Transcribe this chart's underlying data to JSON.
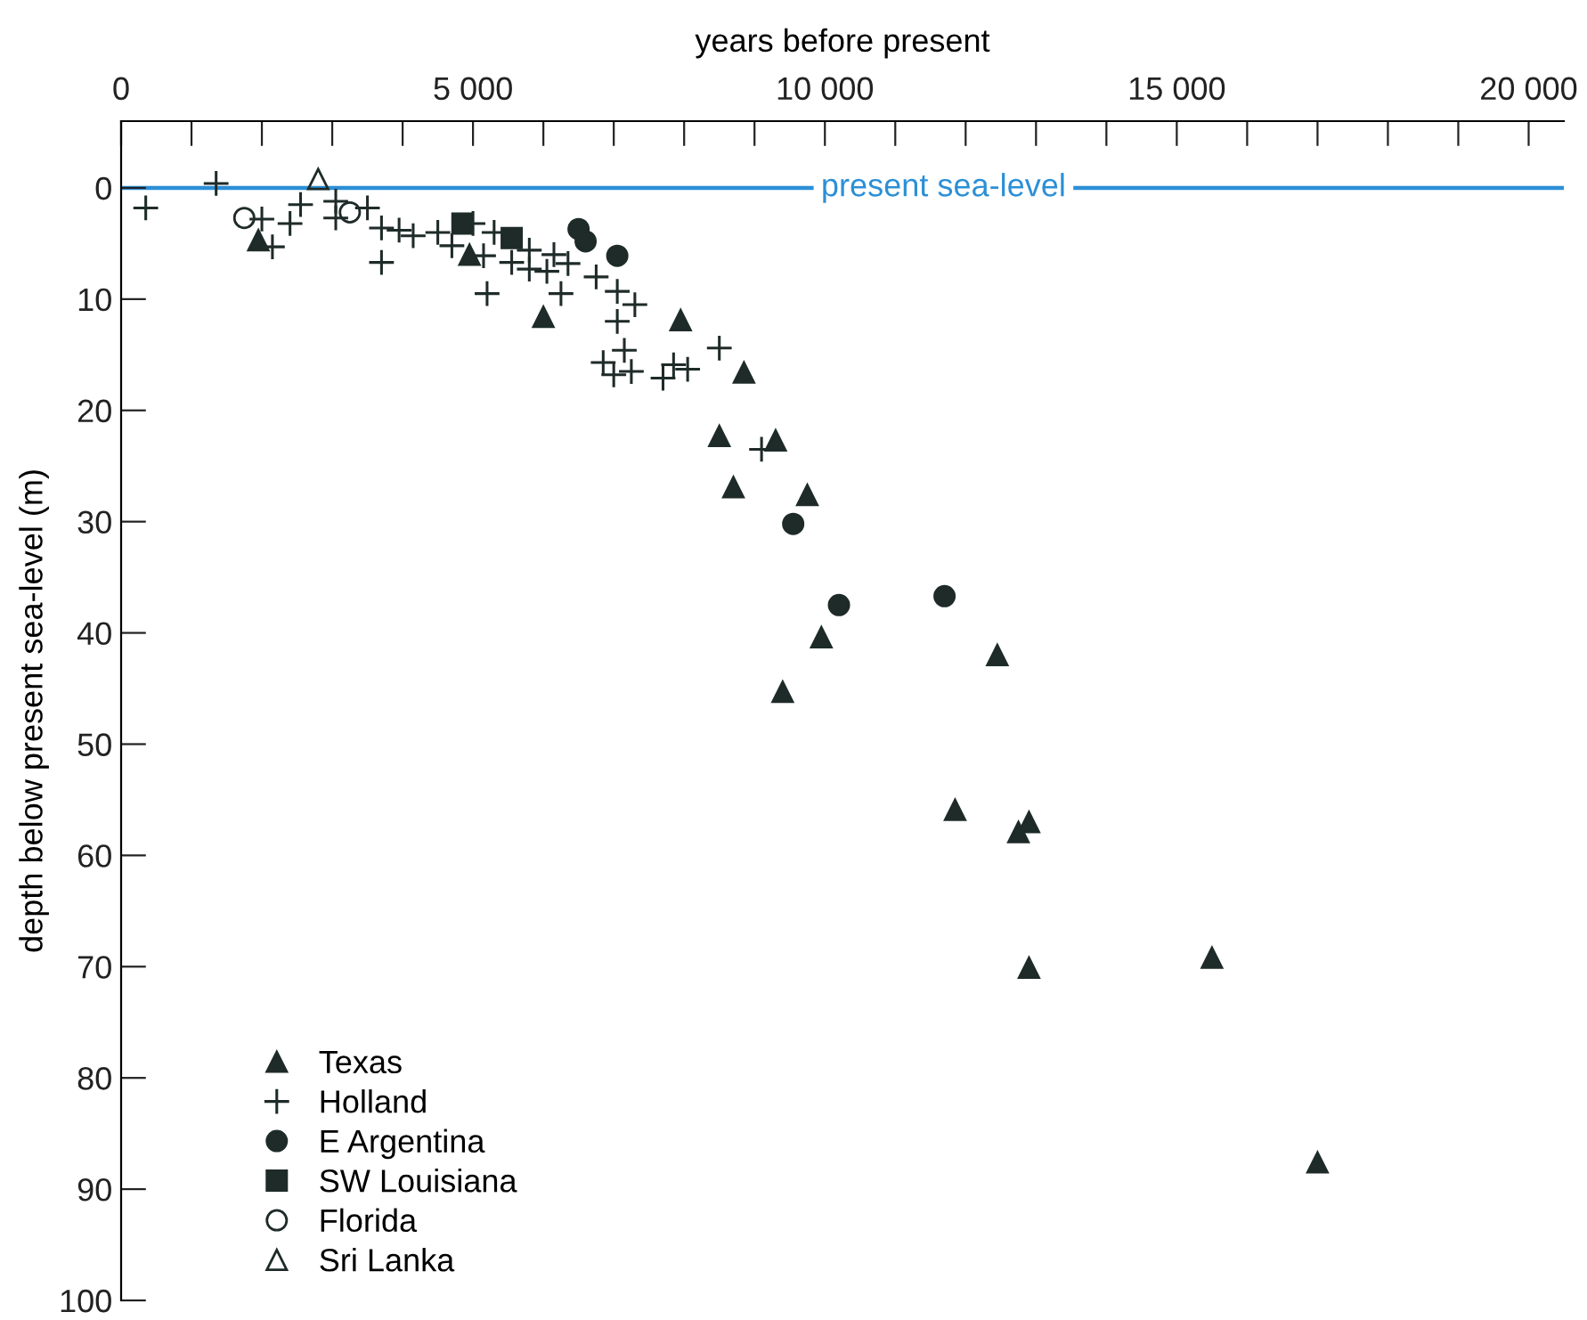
{
  "chart_data": {
    "type": "scatter",
    "xlabel": "years before present",
    "ylabel": "depth below present sea-level (m)",
    "xlim": [
      0,
      20500
    ],
    "ylim": [
      100,
      -6
    ],
    "xticks": [
      0,
      {
        "value": 1000,
        "label": null
      },
      {
        "value": 2000,
        "label": null
      },
      {
        "value": 3000,
        "label": null
      },
      {
        "value": 4000,
        "label": null
      },
      {
        "value": 5000,
        "label": "5 000"
      },
      {
        "value": 6000,
        "label": null
      },
      {
        "value": 7000,
        "label": null
      },
      {
        "value": 8000,
        "label": null
      },
      {
        "value": 9000,
        "label": null
      },
      {
        "value": 10000,
        "label": "10 000"
      },
      {
        "value": 11000,
        "label": null
      },
      {
        "value": 12000,
        "label": null
      },
      {
        "value": 13000,
        "label": null
      },
      {
        "value": 14000,
        "label": null
      },
      {
        "value": 15000,
        "label": "15 000"
      },
      {
        "value": 16000,
        "label": null
      },
      {
        "value": 17000,
        "label": null
      },
      {
        "value": 18000,
        "label": null
      },
      {
        "value": 19000,
        "label": null
      },
      {
        "value": 20000,
        "label": "20 000"
      }
    ],
    "yticks": [
      0,
      10,
      20,
      30,
      40,
      50,
      60,
      70,
      80,
      90,
      100
    ],
    "grid": false,
    "legend": "bottom left",
    "ref_lines": [
      {
        "axis": "y",
        "value": 0,
        "label": "present sea-level",
        "color": "#2b8fd6",
        "line_style": "solid"
      }
    ],
    "series": [
      {
        "name": "Texas",
        "marker": "triangle",
        "color": "#1e2b29",
        "x": [
          1950,
          4950,
          6000,
          7950,
          8850,
          8500,
          9300,
          8700,
          9750,
          9950,
          12450,
          9400,
          11850,
          12900,
          12750,
          12900,
          15500,
          17000
        ],
        "values": [
          4.7,
          6.0,
          11.6,
          11.9,
          16.6,
          22.3,
          22.7,
          26.9,
          27.6,
          40.4,
          42.0,
          45.3,
          55.9,
          57.0,
          57.9,
          70.1,
          69.2,
          87.6
        ]
      },
      {
        "name": "Holland",
        "marker": "cross",
        "color": "#1e2b29",
        "x": [
          350,
          1350,
          2000,
          2400,
          2550,
          2150,
          3050,
          3050,
          3500,
          3700,
          3950,
          4150,
          3700,
          4500,
          4700,
          5000,
          5150,
          5300,
          5200,
          5550,
          5800,
          5800,
          6050,
          6150,
          6350,
          6250,
          6750,
          7050,
          7300,
          7050,
          7150,
          6850,
          7000,
          7250,
          7700,
          7850,
          8050,
          8500,
          9100
        ],
        "values": [
          1.8,
          -0.4,
          2.8,
          3.2,
          1.5,
          5.3,
          1.2,
          2.7,
          1.8,
          3.6,
          3.8,
          4.3,
          6.7,
          4.0,
          5.2,
          3.2,
          6.1,
          4.0,
          9.5,
          6.7,
          5.6,
          7.3,
          7.5,
          6.0,
          6.8,
          9.5,
          8.0,
          9.3,
          10.5,
          12.0,
          14.6,
          15.7,
          16.8,
          16.5,
          17.1,
          15.9,
          16.3,
          14.4,
          23.5
        ]
      },
      {
        "name": "E Argentina",
        "marker": "circle",
        "color": "#1e2b29",
        "x": [
          6500,
          6600,
          7050,
          9550,
          10200,
          11700
        ],
        "values": [
          3.7,
          4.8,
          6.1,
          30.2,
          37.5,
          36.7
        ]
      },
      {
        "name": "SW Louisiana",
        "marker": "square",
        "color": "#1e2b29",
        "x": [
          4850,
          5550
        ],
        "values": [
          3.2,
          4.5
        ]
      },
      {
        "name": "Florida",
        "marker": "circle-open",
        "color": "#1e2b29",
        "x": [
          1750,
          3250
        ],
        "values": [
          2.7,
          2.2
        ]
      },
      {
        "name": "Sri Lanka",
        "marker": "triangle-open",
        "color": "#1e2b29",
        "x": [
          2800
        ],
        "values": [
          -0.8
        ]
      }
    ]
  }
}
